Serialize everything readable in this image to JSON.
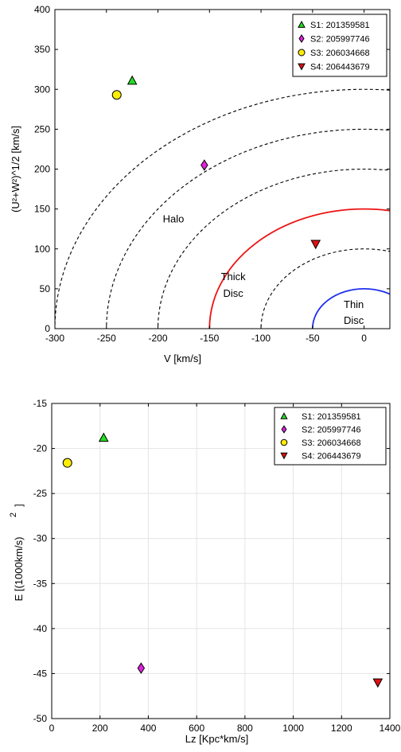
{
  "chart_data": [
    {
      "type": "scatter",
      "xlabel": "V [km/s]",
      "ylabel": "(U²+W²)^1/2 [km/s]",
      "xlim": [
        -300,
        25
      ],
      "ylim": [
        0,
        400
      ],
      "xticks": [
        -300,
        -250,
        -200,
        -150,
        -100,
        -50,
        0
      ],
      "yticks": [
        0,
        50,
        100,
        150,
        200,
        250,
        300,
        350,
        400
      ],
      "grid": false,
      "legend_position": "top-right",
      "series": [
        {
          "name": "S1: 201359581",
          "marker": "triangle-up",
          "color": "#22dd22",
          "x": [
            -225
          ],
          "y": [
            311
          ]
        },
        {
          "name": "S2: 205997746",
          "marker": "diamond",
          "color": "#dd22dd",
          "x": [
            -155
          ],
          "y": [
            205
          ]
        },
        {
          "name": "S3: 206034668",
          "marker": "circle",
          "color": "#ffee00",
          "x": [
            -240
          ],
          "y": [
            293
          ]
        },
        {
          "name": "S4: 206443679",
          "marker": "triangle-down",
          "color": "#dd1111",
          "x": [
            -47
          ],
          "y": [
            106
          ]
        }
      ],
      "contours": [
        {
          "radius": 50,
          "style": "solid",
          "color": "#1f2fee"
        },
        {
          "radius": 100,
          "style": "dashed",
          "color": "#000000"
        },
        {
          "radius": 150,
          "style": "solid",
          "color": "#ee1111"
        },
        {
          "radius": 200,
          "style": "dashed",
          "color": "#000000"
        },
        {
          "radius": 250,
          "style": "dashed",
          "color": "#000000"
        },
        {
          "radius": 300,
          "style": "dashed",
          "color": "#000000"
        }
      ],
      "annotations": [
        {
          "text": "Halo",
          "x": -185,
          "y": 133
        },
        {
          "text": "Thick",
          "x": -127,
          "y": 61
        },
        {
          "text": "Disc",
          "x": -127,
          "y": 40
        },
        {
          "text": "Thin",
          "x": -10,
          "y": 26
        },
        {
          "text": "Disc",
          "x": -10,
          "y": 6
        }
      ]
    },
    {
      "type": "scatter",
      "xlabel": "Lz [Kpc*km/s]",
      "ylabel": "E [(1000km/s)",
      "ylabel_superscript": "2",
      "ylabel_close": "]",
      "xlim": [
        0,
        1400
      ],
      "ylim": [
        -50,
        -15
      ],
      "xticks": [
        0,
        200,
        400,
        600,
        800,
        1000,
        1200,
        1400
      ],
      "yticks": [
        -50,
        -45,
        -40,
        -35,
        -30,
        -25,
        -20,
        -15
      ],
      "grid": true,
      "legend_position": "top-right",
      "series": [
        {
          "name": "S1: 201359581",
          "marker": "triangle-up",
          "color": "#22dd22",
          "x": [
            215
          ],
          "y": [
            -18.8
          ]
        },
        {
          "name": "S2: 205997746",
          "marker": "diamond",
          "color": "#dd22dd",
          "x": [
            370
          ],
          "y": [
            -44.4
          ]
        },
        {
          "name": "S3: 206034668",
          "marker": "circle",
          "color": "#ffee00",
          "x": [
            65
          ],
          "y": [
            -21.6
          ]
        },
        {
          "name": "S4: 206443679",
          "marker": "triangle-down",
          "color": "#dd1111",
          "x": [
            1350
          ],
          "y": [
            -46
          ]
        }
      ]
    }
  ]
}
